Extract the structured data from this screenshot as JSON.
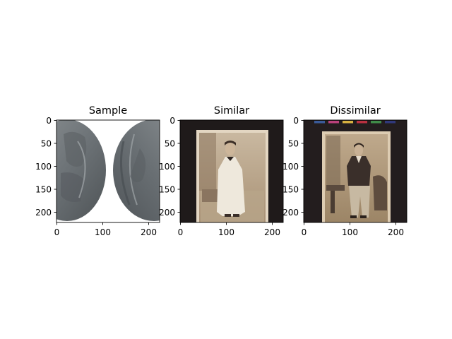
{
  "panels": [
    {
      "title": "Sample",
      "image": "silver-coin-front-back",
      "x_ticks": [
        "0",
        "100",
        "200"
      ],
      "y_ticks": [
        "0",
        "50",
        "100",
        "150",
        "200"
      ]
    },
    {
      "title": "Similar",
      "image": "vintage-portrait-man-light-coat",
      "x_ticks": [
        "0",
        "100",
        "200"
      ],
      "y_ticks": [
        "0",
        "50",
        "100",
        "150",
        "200"
      ]
    },
    {
      "title": "Dissimilar",
      "image": "vintage-portrait-man-with-color-chart",
      "x_ticks": [
        "0",
        "100",
        "200"
      ],
      "y_ticks": [
        "0",
        "50",
        "100",
        "150",
        "200"
      ]
    }
  ]
}
